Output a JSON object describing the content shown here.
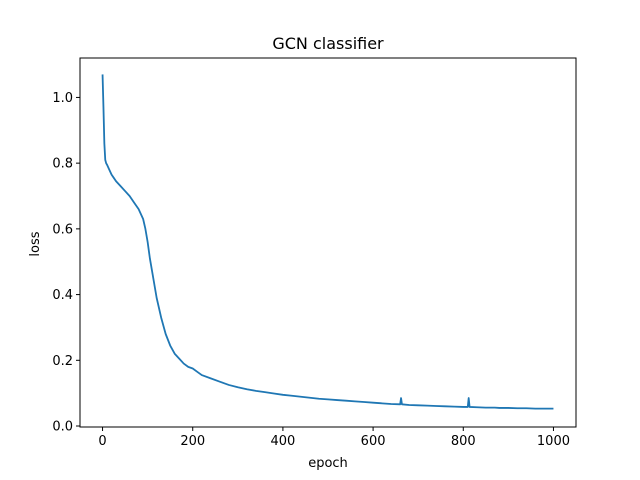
{
  "chart_data": {
    "type": "line",
    "title": "GCN classifier",
    "xlabel": "epoch",
    "ylabel": "loss",
    "xlim": [
      -50,
      1050
    ],
    "ylim": [
      -0.003,
      1.12
    ],
    "xticks": [
      0,
      200,
      400,
      600,
      800,
      1000
    ],
    "yticks": [
      0.0,
      0.2,
      0.4,
      0.6,
      0.8,
      1.0
    ],
    "xtick_labels": [
      "0",
      "200",
      "400",
      "600",
      "800",
      "1000"
    ],
    "ytick_labels": [
      "0.0",
      "0.2",
      "0.4",
      "0.6",
      "0.8",
      "1.0"
    ],
    "grid": false,
    "series": [
      {
        "color": "#1f77b4",
        "x": [
          0,
          2,
          4,
          6,
          8,
          10,
          15,
          20,
          25,
          30,
          40,
          50,
          60,
          70,
          80,
          90,
          95,
          100,
          105,
          110,
          115,
          120,
          130,
          140,
          150,
          160,
          170,
          180,
          190,
          200,
          210,
          220,
          240,
          260,
          270,
          280,
          300,
          320,
          340,
          360,
          380,
          400,
          420,
          440,
          460,
          480,
          500,
          520,
          540,
          560,
          580,
          600,
          620,
          640,
          660,
          662,
          664,
          680,
          700,
          720,
          740,
          760,
          780,
          800,
          810,
          812,
          814,
          830,
          850,
          870,
          880,
          900,
          920,
          940,
          960,
          980,
          1000
        ],
        "values": [
          1.07,
          0.97,
          0.86,
          0.81,
          0.8,
          0.795,
          0.78,
          0.765,
          0.755,
          0.745,
          0.73,
          0.715,
          0.7,
          0.68,
          0.66,
          0.63,
          0.6,
          0.56,
          0.51,
          0.47,
          0.43,
          0.39,
          0.33,
          0.28,
          0.245,
          0.22,
          0.205,
          0.19,
          0.18,
          0.175,
          0.165,
          0.155,
          0.145,
          0.135,
          0.13,
          0.125,
          0.118,
          0.112,
          0.107,
          0.103,
          0.099,
          0.095,
          0.092,
          0.089,
          0.086,
          0.083,
          0.081,
          0.079,
          0.077,
          0.075,
          0.073,
          0.071,
          0.069,
          0.067,
          0.066,
          0.085,
          0.066,
          0.064,
          0.063,
          0.062,
          0.061,
          0.06,
          0.059,
          0.058,
          0.058,
          0.085,
          0.058,
          0.057,
          0.056,
          0.056,
          0.055,
          0.055,
          0.054,
          0.054,
          0.053,
          0.053,
          0.053
        ]
      }
    ]
  }
}
